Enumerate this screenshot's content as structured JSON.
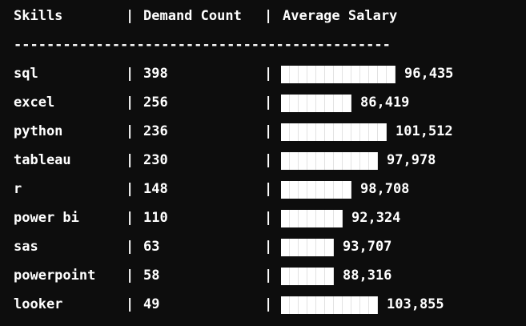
{
  "header": {
    "skills": "Skills",
    "sep1": "|",
    "count": "Demand Count",
    "sep2": "|",
    "salary": "Average Salary"
  },
  "separator": "----------------------------------------------",
  "colors": {
    "background": "#0d0d0d",
    "text": "#ffffff",
    "bar": "#ffffff"
  },
  "chart_data": {
    "type": "bar",
    "categories": [
      "sql",
      "excel",
      "python",
      "tableau",
      "r",
      "power bi",
      "sas",
      "powerpoint",
      "looker"
    ],
    "demand_count": [
      398,
      256,
      236,
      230,
      148,
      110,
      63,
      58,
      49
    ],
    "bar_units": [
      13,
      8,
      12,
      11,
      8,
      7,
      6,
      6,
      11
    ],
    "bar_units_max": 13,
    "series": [
      {
        "values": [
          96435,
          86419,
          101512,
          97978,
          98708,
          92324,
          93707,
          88316,
          103855
        ]
      }
    ],
    "value_labels": [
      "96,435",
      "86,419",
      "101,512",
      "97,978",
      "98,708",
      "92,324",
      "93,707",
      "88,316",
      "103,855"
    ]
  },
  "rows": [
    {
      "skill": "sql",
      "sep1": "|",
      "count": "398",
      "sep2": "|",
      "salary": "96,435"
    },
    {
      "skill": "excel",
      "sep1": "|",
      "count": "256",
      "sep2": "|",
      "salary": "86,419"
    },
    {
      "skill": "python",
      "sep1": "|",
      "count": "236",
      "sep2": "|",
      "salary": "101,512"
    },
    {
      "skill": "tableau",
      "sep1": "|",
      "count": "230",
      "sep2": "|",
      "salary": "97,978"
    },
    {
      "skill": "r",
      "sep1": "|",
      "count": "148",
      "sep2": "|",
      "salary": "98,708"
    },
    {
      "skill": "power bi",
      "sep1": "|",
      "count": "110",
      "sep2": "|",
      "salary": "92,324"
    },
    {
      "skill": "sas",
      "sep1": "|",
      "count": "63",
      "sep2": "|",
      "salary": "93,707"
    },
    {
      "skill": "powerpoint",
      "sep1": "|",
      "count": "58",
      "sep2": "|",
      "salary": "88,316"
    },
    {
      "skill": "looker",
      "sep1": "|",
      "count": "49",
      "sep2": "|",
      "salary": "103,855"
    }
  ]
}
